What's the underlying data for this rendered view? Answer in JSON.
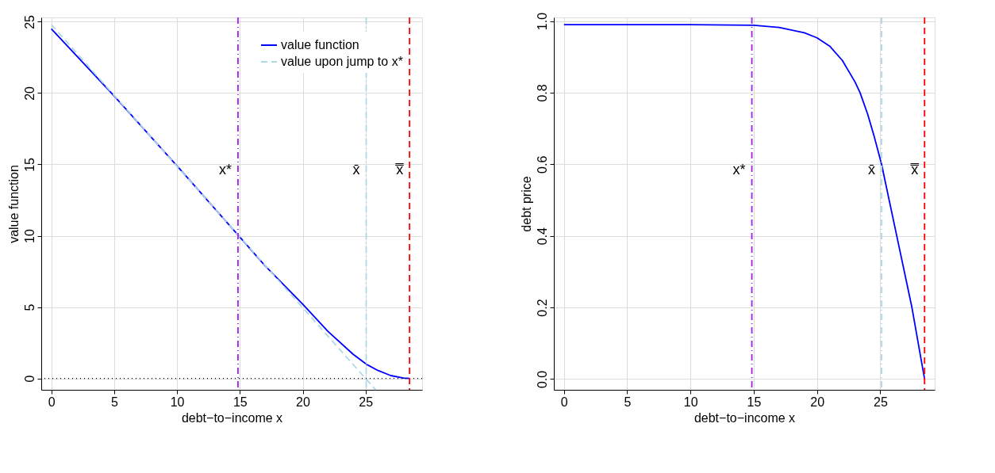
{
  "chart_data": [
    {
      "type": "line",
      "xlabel": "debt−to−income x",
      "ylabel": "value function",
      "xlim": [
        -0.8,
        29.5
      ],
      "ylim": [
        -0.8,
        25.3
      ],
      "xticks": [
        0,
        5,
        10,
        15,
        20,
        25
      ],
      "yticks": [
        0,
        5,
        10,
        15,
        20,
        25
      ],
      "grid": true,
      "legend": "top right",
      "series": [
        {
          "name": "value function",
          "color": "#0000ff",
          "line_style": "solid",
          "x": [
            0,
            5,
            10,
            14.8,
            17,
            20,
            22,
            24,
            25.05,
            26,
            27,
            28,
            28.5
          ],
          "values": [
            24.5,
            19.8,
            14.9,
            10.1,
            7.9,
            5.2,
            3.3,
            1.7,
            1.0,
            0.55,
            0.2,
            0.03,
            0
          ]
        },
        {
          "name": "value upon jump to x*",
          "color": "#add8e6",
          "line_style": "dashed",
          "x": [
            0,
            25.8
          ],
          "values": [
            24.8,
            -0.8
          ]
        }
      ],
      "ref_lines": [
        {
          "axis": "y",
          "value": 0,
          "color": "#000000",
          "line_style": "dotted"
        },
        {
          "axis": "x",
          "value": 14.85,
          "label": "x*",
          "color": "#a020f0",
          "line_style": "dashdot"
        },
        {
          "axis": "x",
          "value": 25.05,
          "label": "x̄",
          "color": "#add8e6",
          "line_style": "dashdot"
        },
        {
          "axis": "x",
          "value": 28.5,
          "label": "x̿",
          "color": "#ff0000",
          "line_style": "dashed"
        }
      ]
    },
    {
      "type": "line",
      "xlabel": "debt−to−income x",
      "ylabel": "debt price",
      "xlim": [
        -0.8,
        29.3
      ],
      "ylim": [
        -0.03,
        1.01
      ],
      "xticks": [
        0,
        5,
        10,
        15,
        20,
        25
      ],
      "yticks": [
        {
          "value": 0,
          "label": "0.0"
        },
        0.2,
        0.4,
        0.6,
        0.8,
        {
          "value": 1,
          "label": "1.0"
        }
      ],
      "grid": true,
      "series": [
        {
          "color": "#0000ff",
          "line_style": "solid",
          "x": [
            0,
            10,
            15,
            17,
            19,
            20,
            21,
            22,
            23,
            23.4,
            24,
            24.5,
            25.1,
            26.3,
            27.5,
            28.5
          ],
          "values": [
            0.99,
            0.99,
            0.988,
            0.982,
            0.967,
            0.953,
            0.93,
            0.89,
            0.83,
            0.8,
            0.74,
            0.68,
            0.6,
            0.4,
            0.2,
            0
          ]
        }
      ],
      "ref_lines": [
        {
          "axis": "x",
          "value": 14.85,
          "label": "x*",
          "color": "#a020f0",
          "line_style": "dashdot"
        },
        {
          "axis": "x",
          "value": 25.1,
          "label": "x̄",
          "color": "#add8e6",
          "line_style": "dashdot"
        },
        {
          "axis": "x",
          "value": 28.5,
          "label": "x̿",
          "color": "#ff0000",
          "line_style": "dashed"
        }
      ]
    }
  ]
}
